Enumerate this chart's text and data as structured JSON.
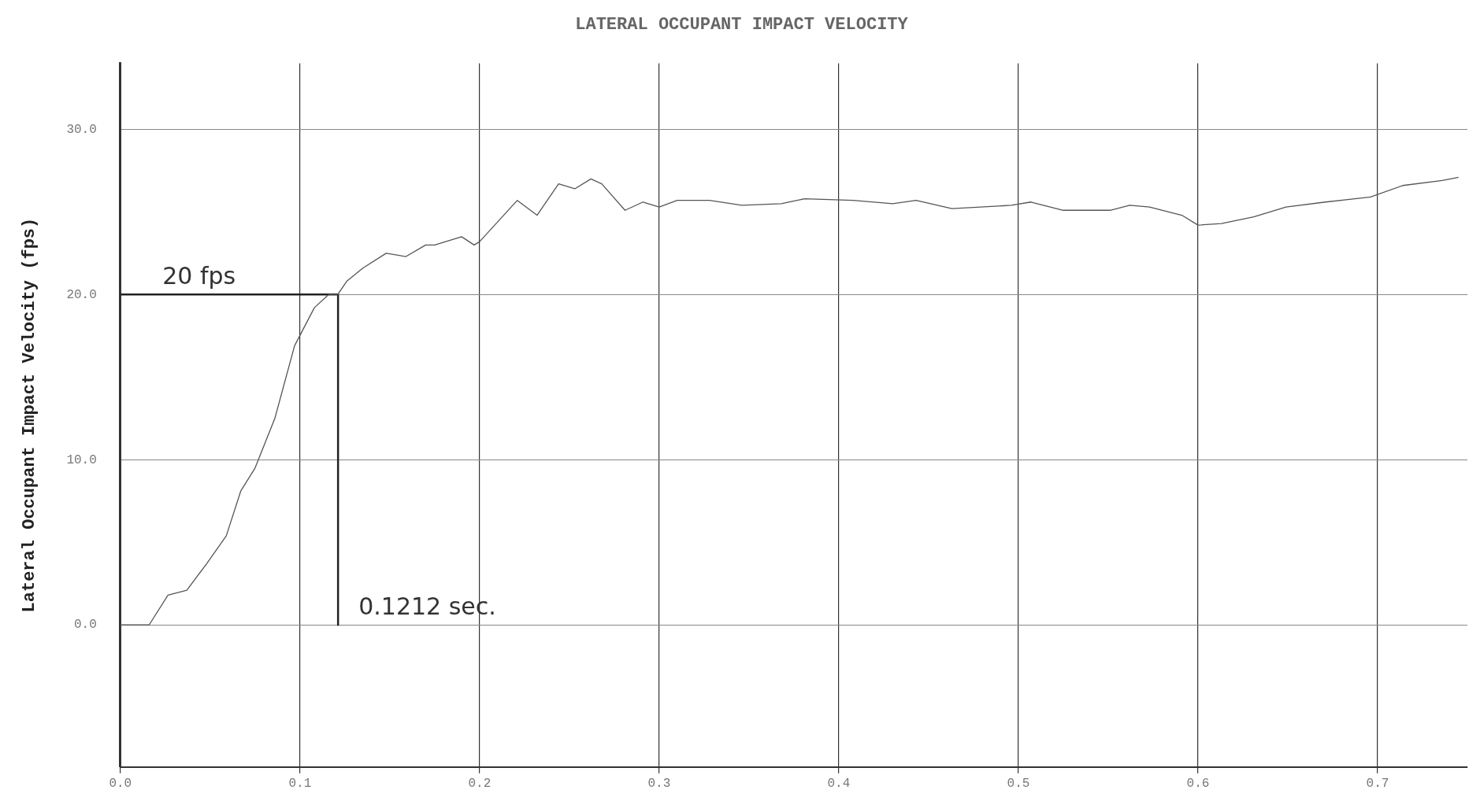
{
  "chart_data": {
    "type": "line",
    "title": "LATERAL OCCUPANT IMPACT VELOCITY",
    "ylabel": "Lateral Occupant Impact Velocity (fps)",
    "xlim": [
      0,
      0.75
    ],
    "ylim": [
      -8.6,
      34
    ],
    "xticks": [
      {
        "value": 0,
        "label": "0.0"
      },
      {
        "value": 0.1,
        "label": "0.1"
      },
      {
        "value": 0.2,
        "label": "0.2"
      },
      {
        "value": 0.3,
        "label": "0.3"
      },
      {
        "value": 0.4,
        "label": "0.4"
      },
      {
        "value": 0.5,
        "label": "0.5"
      },
      {
        "value": 0.6,
        "label": "0.6"
      },
      {
        "value": 0.7,
        "label": "0.7"
      }
    ],
    "yticks": [
      {
        "value": 0,
        "label": "0.0"
      },
      {
        "value": 10,
        "label": "10.0"
      },
      {
        "value": 20,
        "label": "20.0"
      },
      {
        "value": 30,
        "label": "30.0"
      }
    ],
    "grid": true,
    "marker": "none",
    "line_style": "solid",
    "series": [
      {
        "color": "#555555",
        "x": [
          0,
          0.016,
          0.0265,
          0.037,
          0.048,
          0.059,
          0.067,
          0.075,
          0.086,
          0.097,
          0.108,
          0.116,
          0.121,
          0.126,
          0.135,
          0.148,
          0.159,
          0.17,
          0.175,
          0.19,
          0.197,
          0.2,
          0.221,
          0.232,
          0.244,
          0.253,
          0.262,
          0.268,
          0.281,
          0.291,
          0.3,
          0.31,
          0.328,
          0.346,
          0.368,
          0.381,
          0.408,
          0.43,
          0.443,
          0.463,
          0.496,
          0.507,
          0.525,
          0.551,
          0.562,
          0.573,
          0.591,
          0.6,
          0.613,
          0.631,
          0.649,
          0.671,
          0.696,
          0.714,
          0.736,
          0.745
        ],
        "values": [
          0,
          0,
          1.8,
          2.1,
          3.7,
          5.4,
          8.1,
          9.5,
          12.5,
          16.9,
          19.2,
          20.0,
          20.0,
          20.8,
          21.6,
          22.5,
          22.3,
          23.0,
          23.0,
          23.5,
          23.0,
          23.2,
          25.7,
          24.8,
          26.7,
          26.4,
          27.0,
          26.7,
          25.1,
          25.6,
          25.3,
          25.7,
          25.7,
          25.4,
          25.5,
          25.8,
          25.7,
          25.5,
          25.7,
          25.2,
          25.4,
          25.6,
          25.1,
          25.1,
          25.4,
          25.3,
          24.8,
          24.2,
          24.3,
          24.7,
          25.3,
          25.6,
          25.9,
          26.6,
          26.9,
          27.1
        ]
      },
      {
        "type": "line",
        "color": "#222222",
        "x": [
          0,
          0.1212,
          0.1212
        ],
        "values": [
          20,
          20,
          0
        ]
      }
    ],
    "annotations": [
      {
        "text": "20 fps",
        "x": 0.012,
        "y": 20
      },
      {
        "text": "0.1212 sec.",
        "x": 0.1212,
        "y": 0
      }
    ]
  }
}
